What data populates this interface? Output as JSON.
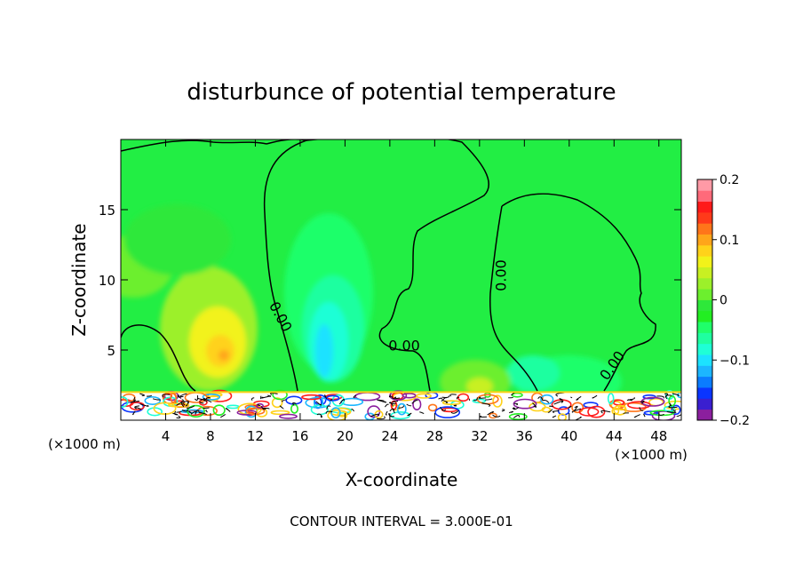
{
  "chart_data": {
    "type": "heatmap",
    "title": "disturbunce of potential temperature",
    "xlabel": "X-coordinate",
    "ylabel": "Z-coordinate",
    "x_unit": "(×1000 m)",
    "x_unit_right": "(×1000 m)",
    "xlim": [
      0,
      50
    ],
    "ylim": [
      0,
      20
    ],
    "x_ticks": [
      "4",
      "8",
      "12",
      "16",
      "20",
      "24",
      "28",
      "32",
      "36",
      "40",
      "44",
      "48"
    ],
    "y_ticks": [
      "5",
      "10",
      "15"
    ],
    "contour_labels": [
      "0.00",
      "0.00",
      "0.00",
      "0.00"
    ],
    "footer": "CONTOUR INTERVAL = 3.000E-01",
    "colorbar": {
      "range": [
        -0.2,
        0.2
      ],
      "tick_labels": [
        "0.2",
        "0.1",
        "0",
        "−0.1",
        "−0.2"
      ],
      "tick_values": [
        0.2,
        0.1,
        0,
        -0.1,
        -0.2
      ],
      "colors": [
        "#8b1f9e",
        "#3a1fd0",
        "#0a35ff",
        "#0b7cff",
        "#1cb6ff",
        "#1ce2ff",
        "#1fffd6",
        "#1fffa0",
        "#1fff6a",
        "#22ee22",
        "#2ee83a",
        "#6cef2e",
        "#9cf02a",
        "#c8f022",
        "#f2f21a",
        "#ffd21a",
        "#ffa51a",
        "#ff751a",
        "#ff3a1a",
        "#ff1a1a",
        "#ff6a7a",
        "#ff9aa6"
      ]
    },
    "background_color": "#22ee44",
    "grid": false,
    "legend": "right"
  }
}
